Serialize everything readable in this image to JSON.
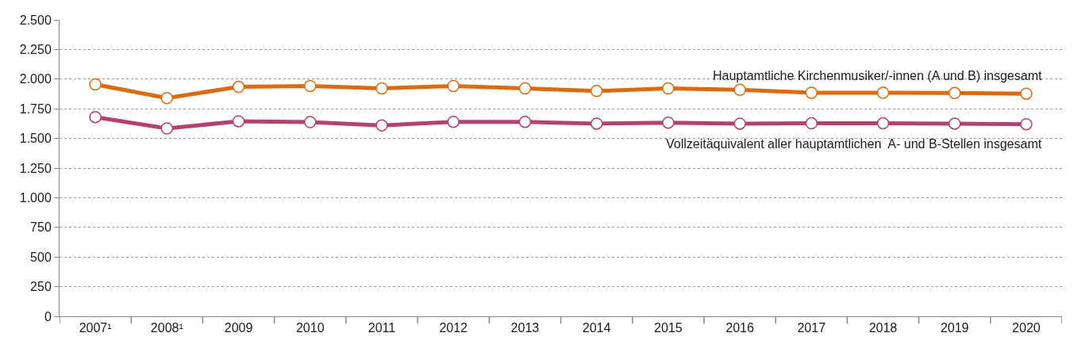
{
  "chart_data": {
    "type": "line",
    "categories": [
      "2007¹",
      "2008¹",
      "2009",
      "2010",
      "2011",
      "2012",
      "2013",
      "2014",
      "2015",
      "2016",
      "2017",
      "2018",
      "2019",
      "2020"
    ],
    "series": [
      {
        "name": "Hauptamtliche Kirchenmusiker/-innen (A und B) insgesamt",
        "color": "#dc6a10",
        "values": [
          1955,
          1840,
          1935,
          1942,
          1922,
          1942,
          1922,
          1900,
          1922,
          1910,
          1885,
          1885,
          1883,
          1877
        ]
      },
      {
        "name": "Vollzeitäquivalent aller hauptamtlichen  A- und B-Stellen insgesamt",
        "color": "#b5416e",
        "values": [
          1680,
          1584,
          1645,
          1638,
          1610,
          1640,
          1640,
          1625,
          1633,
          1625,
          1627,
          1627,
          1625,
          1620
        ]
      }
    ],
    "ylim": [
      0,
      2500
    ],
    "yticks": [
      0,
      250,
      500,
      750,
      {
        "value": 1000,
        "label": "1.000"
      },
      {
        "value": 1250,
        "label": "1.250"
      },
      {
        "value": 1500,
        "label": "1.500"
      },
      {
        "value": 1750,
        "label": "1.750"
      },
      {
        "value": 2000,
        "label": "2.000"
      },
      {
        "value": 2250,
        "label": "2.250"
      },
      {
        "value": 2500,
        "label": "2.500"
      }
    ],
    "grid": "y",
    "marker": "circle",
    "line_style": "solid",
    "legend": false
  }
}
